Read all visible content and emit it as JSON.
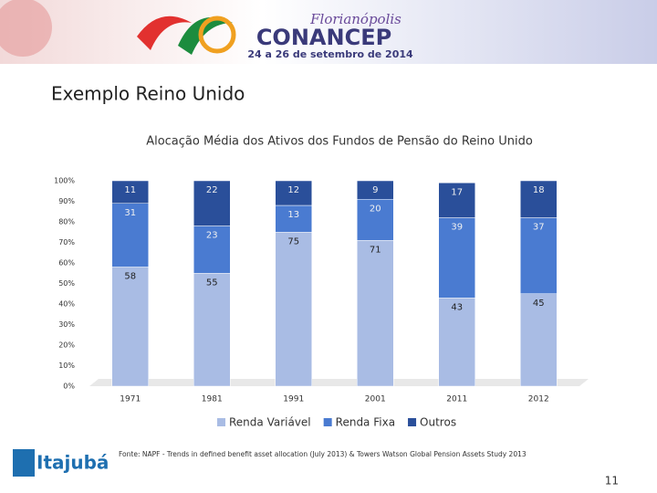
{
  "slide": {
    "brand_script": "Florianópolis",
    "brand": "CONANCEP",
    "dates": "24 a 26 de setembro de 2014",
    "heading": "Exemplo Reino Unido",
    "source": "Fonte: NAPF - Trends in defined benefit asset allocation (July 2013) & Towers Watson Global Pension Assets Study 2013",
    "logo": "Itajubá",
    "page_number": "11"
  },
  "chart_data": {
    "type": "stacked_bar",
    "title": "Alocação Média dos Ativos dos Fundos de Pensão do Reino Unido",
    "categories": [
      "1971",
      "1981",
      "1991",
      "2001",
      "2011",
      "2012"
    ],
    "series": [
      {
        "name": "Renda Variável",
        "color": "#a9bce4",
        "values": [
          58,
          55,
          75,
          71,
          43,
          45
        ]
      },
      {
        "name": "Renda Fixa",
        "color": "#4a7bd1",
        "values": [
          31,
          23,
          13,
          20,
          39,
          37
        ]
      },
      {
        "name": "Outros",
        "color": "#2a4f9a",
        "values": [
          11,
          22,
          12,
          9,
          17,
          18
        ]
      }
    ],
    "ylim": [
      0,
      100
    ],
    "yticks": [
      {
        "value": 0,
        "label": "0%"
      },
      {
        "value": 10,
        "label": "10%"
      },
      {
        "value": 20,
        "label": "20%"
      },
      {
        "value": 30,
        "label": "30%"
      },
      {
        "value": 40,
        "label": "40%"
      },
      {
        "value": 50,
        "label": "50%"
      },
      {
        "value": 60,
        "label": "60%"
      },
      {
        "value": 70,
        "label": "70%"
      },
      {
        "value": 80,
        "label": "80%"
      },
      {
        "value": 90,
        "label": "90%"
      },
      {
        "value": 100,
        "label": "100%"
      }
    ],
    "grid": false,
    "legend": "bottom"
  }
}
